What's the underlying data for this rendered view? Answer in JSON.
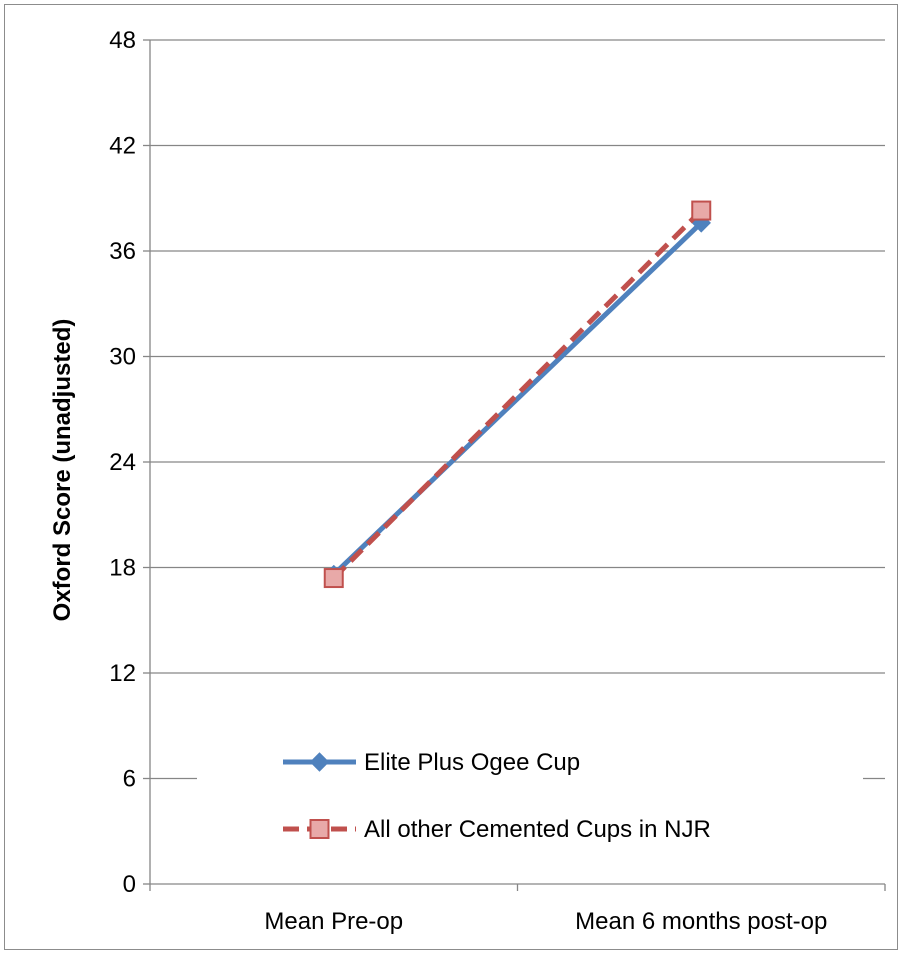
{
  "chart_data": {
    "type": "line",
    "categories": [
      "Mean Pre-op",
      "Mean 6 months post-op"
    ],
    "ylabel": "Oxford Score (unadjusted)",
    "xlabel": "",
    "ylim": [
      0,
      48
    ],
    "yticks": [
      0,
      6,
      12,
      18,
      24,
      30,
      36,
      42,
      48
    ],
    "grid": true,
    "legend_position": "bottom-right inside",
    "series": [
      {
        "name": "Elite Plus Ogee Cup",
        "values": [
          17.6,
          37.6
        ],
        "color": "#4f81bd",
        "marker": "diamond",
        "dash": "solid"
      },
      {
        "name": "All other Cemented Cups in NJR",
        "values": [
          17.4,
          38.3
        ],
        "color": "#c0504d",
        "marker": "square",
        "dash": "dashed"
      }
    ]
  }
}
